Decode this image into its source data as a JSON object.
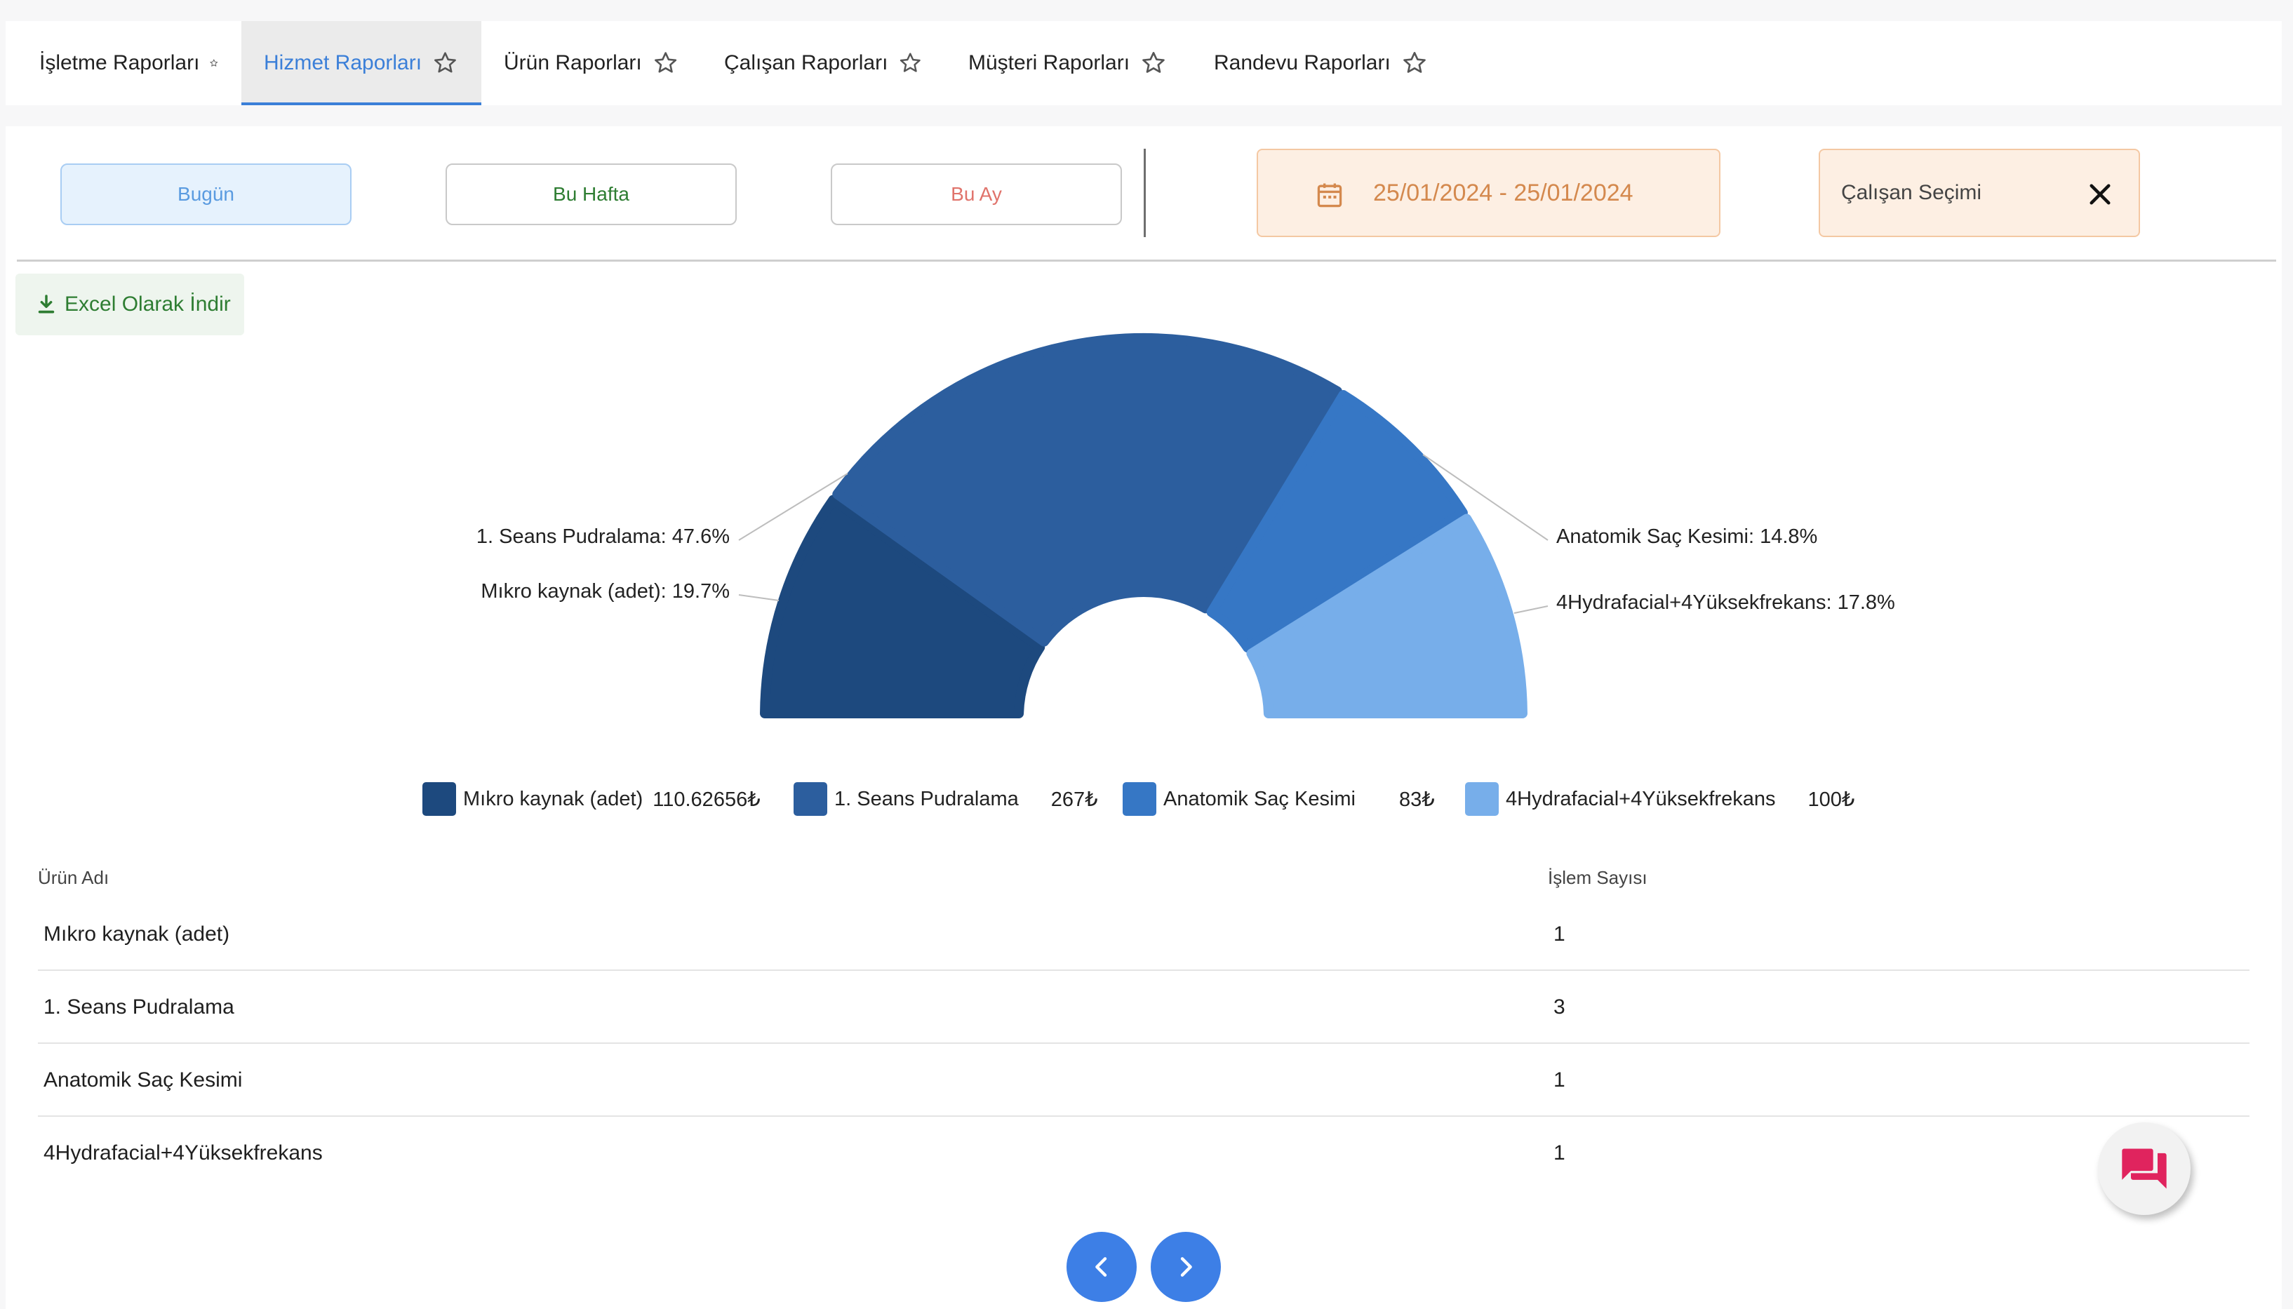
{
  "tabs": [
    {
      "label": "İşletme Raporları"
    },
    {
      "label": "Hizmet Raporları"
    },
    {
      "label": "Ürün Raporları"
    },
    {
      "label": "Çalışan Raporları"
    },
    {
      "label": "Müşteri Raporları"
    },
    {
      "label": "Randevu Raporları"
    }
  ],
  "active_tab": "Hizmet Raporları",
  "filters": {
    "today": "Bugün",
    "this_week": "Bu Hafta",
    "this_month": "Bu Ay",
    "date_range": "25/01/2024 - 25/01/2024",
    "employee_select": "Çalışan Seçimi"
  },
  "excel_label": "Excel Olarak İndir",
  "colors": {
    "accent": "#3b7fd8",
    "date_text": "#d4894e",
    "excel_green": "#2e7d32",
    "week_green": "#2e7d32",
    "month_red": "#e0736b",
    "today_blue": "#5a9be0"
  },
  "chart_data": {
    "type": "pie",
    "style": "half-donut",
    "slices": [
      {
        "name": "Mıkro kaynak (adet)",
        "percent": 19.7,
        "label": "Mıkro kaynak (adet): 19.7%",
        "amount": "110.62656₺",
        "color": "#1d497e"
      },
      {
        "name": "1. Seans Pudralama",
        "percent": 47.6,
        "label": "1. Seans Pudralama: 47.6%",
        "amount": "267₺",
        "color": "#2c5e9e"
      },
      {
        "name": "Anatomik Saç Kesimi",
        "percent": 14.8,
        "label": "Anatomik Saç Kesimi: 14.8%",
        "amount": "83₺",
        "color": "#3677c5"
      },
      {
        "name": "4Hydrafacial+4Yüksekfrekans",
        "percent": 17.8,
        "label": "4Hydrafacial+4Yüksekfrekans: 17.8%",
        "amount": "100₺",
        "color": "#77aeea"
      }
    ],
    "legend": "bottom"
  },
  "table": {
    "headers": {
      "name": "Ürün Adı",
      "count": "İşlem Sayısı"
    },
    "rows": [
      {
        "name": "Mıkro kaynak (adet)",
        "count": "1"
      },
      {
        "name": "1. Seans Pudralama",
        "count": "3"
      },
      {
        "name": "Anatomik Saç Kesimi",
        "count": "1"
      },
      {
        "name": "4Hydrafacial+4Yüksekfrekans",
        "count": "1"
      }
    ]
  },
  "icons": {
    "tab_star": "star-outline-icon",
    "calendar": "calendar-icon",
    "clear": "close-icon",
    "download": "download-icon",
    "prev": "chevron-left-icon",
    "next": "chevron-right-icon",
    "chat": "chat-icon"
  }
}
